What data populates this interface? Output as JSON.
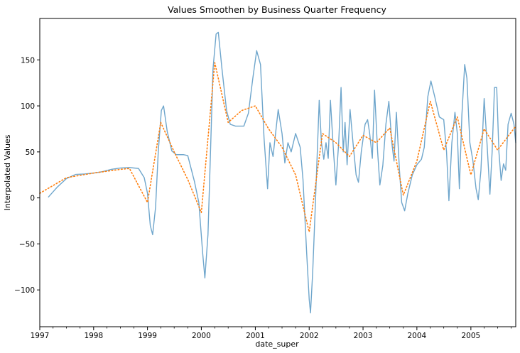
{
  "chart_data": {
    "type": "line",
    "title": "Values Smoothen by Business Quarter Frequency",
    "xlabel": "date_super",
    "ylabel": "Interpolated Values",
    "xlim": [
      "1997-01-01",
      "2005-11-01"
    ],
    "ylim": [
      -140,
      195
    ],
    "xticks": [
      {
        "date": "1997-01-01",
        "label": "1997"
      },
      {
        "date": "1998-01-01",
        "label": "1998"
      },
      {
        "date": "1999-01-01",
        "label": "1999"
      },
      {
        "date": "2000-01-01",
        "label": "2000"
      },
      {
        "date": "2001-01-01",
        "label": "2001"
      },
      {
        "date": "2002-01-01",
        "label": "2002"
      },
      {
        "date": "2003-01-01",
        "label": "2003"
      },
      {
        "date": "2004-01-01",
        "label": "2004"
      },
      {
        "date": "2005-01-01",
        "label": "2005"
      }
    ],
    "yticks": [
      {
        "value": -100,
        "label": "−100"
      },
      {
        "value": -50,
        "label": "−50"
      },
      {
        "value": 0,
        "label": "0"
      },
      {
        "value": 50,
        "label": "50"
      },
      {
        "value": 100,
        "label": "100"
      },
      {
        "value": 150,
        "label": "150"
      }
    ],
    "grid": false,
    "series": [
      {
        "style": "solid",
        "color": "#6fa6cc",
        "points": [
          [
            "1997-03-01",
            1
          ],
          [
            "1997-05-01",
            12
          ],
          [
            "1997-07-01",
            21
          ],
          [
            "1997-09-01",
            25.5
          ],
          [
            "1997-11-01",
            26
          ],
          [
            "1998-01-01",
            27
          ],
          [
            "1998-03-01",
            28.5
          ],
          [
            "1998-05-01",
            31
          ],
          [
            "1998-07-01",
            32.5
          ],
          [
            "1998-09-01",
            33
          ],
          [
            "1998-11-01",
            32
          ],
          [
            "1998-12-10",
            22
          ],
          [
            "1999-01-01",
            5
          ],
          [
            "1999-01-20",
            -30
          ],
          [
            "1999-02-05",
            -40
          ],
          [
            "1999-02-25",
            -10
          ],
          [
            "1999-03-15",
            50
          ],
          [
            "1999-04-05",
            95
          ],
          [
            "1999-04-20",
            100
          ],
          [
            "1999-05-15",
            72
          ],
          [
            "1999-06-15",
            51
          ],
          [
            "1999-07-15",
            47
          ],
          [
            "1999-09-01",
            47
          ],
          [
            "1999-10-01",
            46
          ],
          [
            "1999-11-15",
            18
          ],
          [
            "1999-12-15",
            -5
          ],
          [
            "2000-01-10",
            -60
          ],
          [
            "2000-01-25",
            -87
          ],
          [
            "2000-02-15",
            -40
          ],
          [
            "2000-03-05",
            60
          ],
          [
            "2000-03-20",
            140
          ],
          [
            "2000-04-10",
            178
          ],
          [
            "2000-04-25",
            180
          ],
          [
            "2000-05-20",
            140
          ],
          [
            "2000-06-20",
            95
          ],
          [
            "2000-07-15",
            80
          ],
          [
            "2000-08-20",
            78
          ],
          [
            "2000-10-15",
            78
          ],
          [
            "2000-11-15",
            92
          ],
          [
            "2000-12-15",
            130
          ],
          [
            "2001-01-10",
            160
          ],
          [
            "2001-02-05",
            145
          ],
          [
            "2001-03-01",
            65
          ],
          [
            "2001-03-25",
            10
          ],
          [
            "2001-04-10",
            60
          ],
          [
            "2001-05-01",
            45
          ],
          [
            "2001-06-05",
            96
          ],
          [
            "2001-07-01",
            70
          ],
          [
            "2001-07-20",
            38
          ],
          [
            "2001-08-10",
            60
          ],
          [
            "2001-09-01",
            50
          ],
          [
            "2001-10-01",
            70
          ],
          [
            "2001-11-01",
            55
          ],
          [
            "2001-11-20",
            20
          ],
          [
            "2001-12-15",
            -60
          ],
          [
            "2002-01-01",
            -110
          ],
          [
            "2002-01-10",
            -125
          ],
          [
            "2002-01-25",
            -80
          ],
          [
            "2002-02-10",
            -15
          ],
          [
            "2002-02-25",
            50
          ],
          [
            "2002-03-10",
            106
          ],
          [
            "2002-03-25",
            60
          ],
          [
            "2002-04-10",
            42
          ],
          [
            "2002-04-25",
            60
          ],
          [
            "2002-05-10",
            43
          ],
          [
            "2002-05-25",
            106
          ],
          [
            "2002-06-15",
            50
          ],
          [
            "2002-07-01",
            14
          ],
          [
            "2002-07-20",
            60
          ],
          [
            "2002-08-05",
            120
          ],
          [
            "2002-08-20",
            50
          ],
          [
            "2002-09-01",
            82
          ],
          [
            "2002-09-15",
            36
          ],
          [
            "2002-10-05",
            96
          ],
          [
            "2002-10-25",
            60
          ],
          [
            "2002-11-15",
            25
          ],
          [
            "2002-12-01",
            17
          ],
          [
            "2002-12-20",
            50
          ],
          [
            "2003-01-15",
            80
          ],
          [
            "2003-02-01",
            85
          ],
          [
            "2003-02-15",
            70
          ],
          [
            "2003-03-05",
            43
          ],
          [
            "2003-03-20",
            117
          ],
          [
            "2003-04-10",
            50
          ],
          [
            "2003-04-25",
            14
          ],
          [
            "2003-05-15",
            35
          ],
          [
            "2003-06-05",
            80
          ],
          [
            "2003-06-25",
            105
          ],
          [
            "2003-07-15",
            60
          ],
          [
            "2003-07-30",
            40
          ],
          [
            "2003-08-15",
            93
          ],
          [
            "2003-09-05",
            30
          ],
          [
            "2003-09-20",
            -5
          ],
          [
            "2003-10-10",
            -14
          ],
          [
            "2003-11-01",
            5
          ],
          [
            "2003-12-01",
            25
          ],
          [
            "2004-01-01",
            36
          ],
          [
            "2004-02-01",
            42
          ],
          [
            "2004-02-20",
            55
          ],
          [
            "2004-03-15",
            110
          ],
          [
            "2004-04-05",
            127
          ],
          [
            "2004-05-01",
            110
          ],
          [
            "2004-06-01",
            88
          ],
          [
            "2004-07-01",
            85
          ],
          [
            "2004-07-20",
            50
          ],
          [
            "2004-08-05",
            -3
          ],
          [
            "2004-08-25",
            60
          ],
          [
            "2004-09-15",
            93
          ],
          [
            "2004-10-01",
            70
          ],
          [
            "2004-10-15",
            10
          ],
          [
            "2004-11-01",
            90
          ],
          [
            "2004-11-20",
            145
          ],
          [
            "2004-12-05",
            130
          ],
          [
            "2004-12-25",
            60
          ],
          [
            "2005-01-15",
            40
          ],
          [
            "2005-02-05",
            10
          ],
          [
            "2005-02-20",
            -2
          ],
          [
            "2005-03-10",
            30
          ],
          [
            "2005-04-01",
            108
          ],
          [
            "2005-04-20",
            60
          ],
          [
            "2005-05-10",
            4
          ],
          [
            "2005-05-25",
            50
          ],
          [
            "2005-06-10",
            120
          ],
          [
            "2005-06-25",
            120
          ],
          [
            "2005-07-10",
            50
          ],
          [
            "2005-07-25",
            19
          ],
          [
            "2005-08-10",
            37
          ],
          [
            "2005-08-25",
            30
          ],
          [
            "2005-09-10",
            80
          ],
          [
            "2005-10-01",
            92
          ],
          [
            "2005-10-20",
            80
          ],
          [
            "2005-11-01",
            60
          ]
        ]
      },
      {
        "style": "dotted",
        "color": "#ff7f0e",
        "points": [
          [
            "1997-01-01",
            5
          ],
          [
            "1997-07-01",
            22
          ],
          [
            "1998-01-01",
            27
          ],
          [
            "1998-07-01",
            31
          ],
          [
            "1998-09-01",
            32
          ],
          [
            "1999-01-01",
            -5
          ],
          [
            "1999-04-01",
            82
          ],
          [
            "1999-07-01",
            50
          ],
          [
            "1999-10-01",
            20
          ],
          [
            "2000-01-01",
            -16
          ],
          [
            "2000-04-01",
            147
          ],
          [
            "2000-07-01",
            82
          ],
          [
            "2000-10-01",
            95
          ],
          [
            "2001-01-01",
            100
          ],
          [
            "2001-04-01",
            75
          ],
          [
            "2001-07-01",
            55
          ],
          [
            "2001-10-01",
            25
          ],
          [
            "2002-01-01",
            -37
          ],
          [
            "2002-04-01",
            70
          ],
          [
            "2002-07-01",
            60
          ],
          [
            "2002-10-01",
            45
          ],
          [
            "2003-01-01",
            68
          ],
          [
            "2003-04-01",
            60
          ],
          [
            "2003-07-01",
            76
          ],
          [
            "2003-10-01",
            3
          ],
          [
            "2004-01-01",
            40
          ],
          [
            "2004-04-01",
            105
          ],
          [
            "2004-07-01",
            52
          ],
          [
            "2004-10-01",
            88
          ],
          [
            "2005-01-01",
            25
          ],
          [
            "2005-04-01",
            75
          ],
          [
            "2005-07-01",
            52
          ],
          [
            "2005-11-01",
            78
          ]
        ]
      }
    ]
  }
}
